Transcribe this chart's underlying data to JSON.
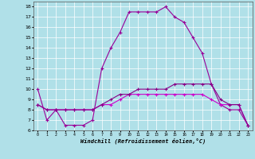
{
  "xlabel": "Windchill (Refroidissement éolien,°C)",
  "bg_color": "#b0e0e8",
  "grid_color": "#ffffff",
  "line_color1": "#990099",
  "line_color2": "#cc00cc",
  "line_color3": "#880088",
  "x_hours": [
    0,
    1,
    2,
    3,
    4,
    5,
    6,
    7,
    8,
    9,
    10,
    11,
    12,
    13,
    14,
    15,
    16,
    17,
    18,
    19,
    20,
    21,
    22,
    23
  ],
  "series1": [
    10,
    7,
    8,
    6.5,
    6.5,
    6.5,
    7,
    12,
    14,
    15.5,
    17.5,
    17.5,
    17.5,
    17.5,
    18,
    17,
    16.5,
    15,
    13.5,
    10.5,
    8.5,
    8,
    8,
    6.5
  ],
  "series2": [
    8.5,
    8,
    8,
    8,
    8,
    8,
    8,
    8.5,
    8.5,
    9,
    9.5,
    9.5,
    9.5,
    9.5,
    9.5,
    9.5,
    9.5,
    9.5,
    9.5,
    9,
    8.5,
    8.5,
    8.5,
    6.5
  ],
  "series3": [
    8.5,
    8,
    8,
    8,
    8,
    8,
    8,
    8.5,
    9,
    9.5,
    9.5,
    10,
    10,
    10,
    10,
    10.5,
    10.5,
    10.5,
    10.5,
    10.5,
    9,
    8.5,
    8.5,
    6.5
  ],
  "ylim": [
    6,
    18.5
  ],
  "yticks": [
    6,
    7,
    8,
    9,
    10,
    11,
    12,
    13,
    14,
    15,
    16,
    17,
    18
  ],
  "xlim": [
    -0.5,
    23.5
  ]
}
